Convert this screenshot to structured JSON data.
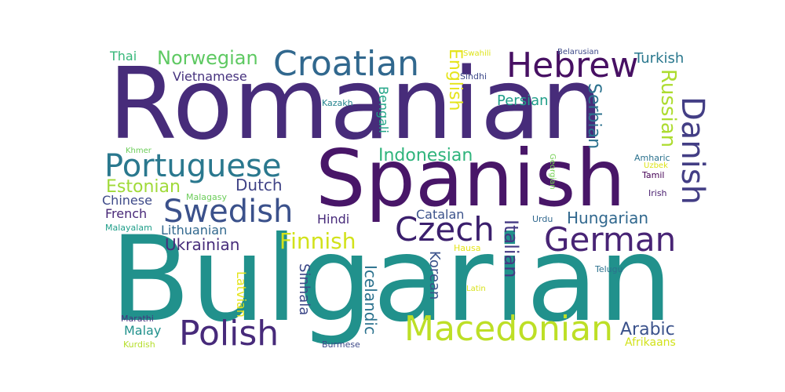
{
  "wordcloud": {
    "words": [
      {
        "text": "Romanian",
        "color": "#472c7a"
      },
      {
        "text": "Bulgarian",
        "color": "#21918c"
      },
      {
        "text": "Spanish",
        "color": "#481668"
      },
      {
        "text": "Croatian",
        "color": "#31688e"
      },
      {
        "text": "Hebrew",
        "color": "#471063"
      },
      {
        "text": "Portuguese",
        "color": "#2a788e"
      },
      {
        "text": "Czech",
        "color": "#3b1f6d"
      },
      {
        "text": "German",
        "color": "#482475"
      },
      {
        "text": "Swedish",
        "color": "#3b518b"
      },
      {
        "text": "Macedonian",
        "color": "#bddf26"
      },
      {
        "text": "Polish",
        "color": "#472a7a"
      },
      {
        "text": "Danish",
        "color": "#433e85"
      },
      {
        "text": "Norwegian",
        "color": "#5ec962"
      },
      {
        "text": "Finnish",
        "color": "#d2e21b"
      },
      {
        "text": "Indonesian",
        "color": "#2fb47c"
      },
      {
        "text": "Estonian",
        "color": "#a0da39"
      },
      {
        "text": "Hungarian",
        "color": "#31688e"
      },
      {
        "text": "Ukrainian",
        "color": "#472d7b"
      },
      {
        "text": "Arabic",
        "color": "#3b528b"
      },
      {
        "text": "Italian",
        "color": "#443983"
      },
      {
        "text": "Russian",
        "color": "#addc30"
      },
      {
        "text": "English",
        "color": "#e5e419"
      },
      {
        "text": "Serbian",
        "color": "#2c728e"
      },
      {
        "text": "Dutch",
        "color": "#414487"
      },
      {
        "text": "Persian",
        "color": "#1f9e89"
      },
      {
        "text": "Vietnamese",
        "color": "#46327e"
      },
      {
        "text": "Turkish",
        "color": "#2a788e"
      },
      {
        "text": "Thai",
        "color": "#35b779"
      },
      {
        "text": "Chinese",
        "color": "#3e4a89"
      },
      {
        "text": "French",
        "color": "#482878"
      },
      {
        "text": "Lithuanian",
        "color": "#31688e"
      },
      {
        "text": "Hindi",
        "color": "#472a7a"
      },
      {
        "text": "Catalan",
        "color": "#3b528b"
      },
      {
        "text": "Bengali",
        "color": "#20a486"
      },
      {
        "text": "Icelandic",
        "color": "#2c728e"
      },
      {
        "text": "Sinhala",
        "color": "#3e4989"
      },
      {
        "text": "Korean",
        "color": "#3b528b"
      },
      {
        "text": "Latvian",
        "color": "#e5e419"
      },
      {
        "text": "Malay",
        "color": "#21918c"
      },
      {
        "text": "Kazakh",
        "color": "#25848e"
      },
      {
        "text": "Sindhi",
        "color": "#3e4a89"
      },
      {
        "text": "Swahili",
        "color": "#dde318"
      },
      {
        "text": "Belarusian",
        "color": "#3e4989"
      },
      {
        "text": "Khmer",
        "color": "#6ccd5a"
      },
      {
        "text": "Malagasy",
        "color": "#6ccd5a"
      },
      {
        "text": "Malayalam",
        "color": "#1f9e89"
      },
      {
        "text": "Amharic",
        "color": "#2c728e"
      },
      {
        "text": "Uzbek",
        "color": "#dde318"
      },
      {
        "text": "Tamil",
        "color": "#440154"
      },
      {
        "text": "Irish",
        "color": "#481c6e"
      },
      {
        "text": "Georgian",
        "color": "#75d054"
      },
      {
        "text": "Urdu",
        "color": "#31688e"
      },
      {
        "text": "Hausa",
        "color": "#e5e419"
      },
      {
        "text": "Latin",
        "color": "#d8e219"
      },
      {
        "text": "Telugu",
        "color": "#2c728e"
      },
      {
        "text": "Marathi",
        "color": "#46327e"
      },
      {
        "text": "Kurdish",
        "color": "#b5de2b"
      },
      {
        "text": "Burmese",
        "color": "#3e4a89"
      },
      {
        "text": "Afrikaans",
        "color": "#d2e21b"
      }
    ]
  }
}
